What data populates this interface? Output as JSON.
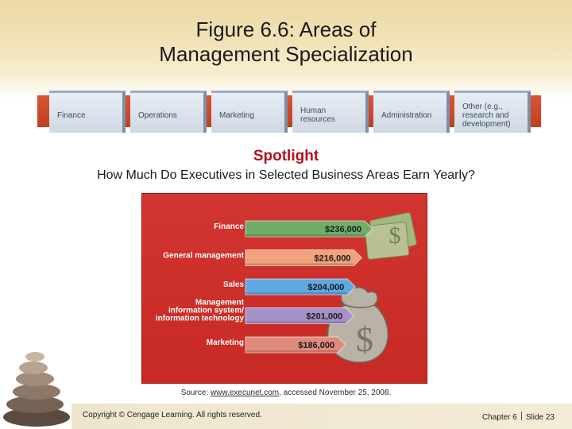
{
  "slide": {
    "title_line1": "Figure 6.6: Areas of",
    "title_line2": "Management Specialization"
  },
  "specializations": [
    "Finance",
    "Operations",
    "Marketing",
    "Human resources",
    "Administration",
    "Other (e.g., research and development)"
  ],
  "spotlight": {
    "heading": "Spotlight",
    "subtitle": "How Much Do Executives in Selected Business Areas Earn Yearly?"
  },
  "chart_data": {
    "type": "bar",
    "orientation": "horizontal",
    "categories": [
      "Finance",
      "General management",
      "Sales",
      "Management information system/ information technology",
      "Marketing"
    ],
    "values": [
      236000,
      216000,
      204000,
      201000,
      186000
    ],
    "value_labels": [
      "$236,000",
      "$216,000",
      "$204,000",
      "$201,000",
      "$186,000"
    ],
    "bar_colors": [
      "#6fae6a",
      "#f0a27c",
      "#5fa9e2",
      "#a592c8",
      "#e08a7e"
    ],
    "xlim": [
      0,
      236000
    ],
    "grid": false
  },
  "source": {
    "prefix": "Source: ",
    "link": "www.execunet.com",
    "suffix": ", accessed November 25, 2008."
  },
  "footer": {
    "copyright": "Copyright © Cengage Learning. All rights reserved.",
    "chapter": "Chapter 6",
    "slide": "Slide 23"
  },
  "colors": {
    "spotlight": "#b3121c",
    "chart_background": "#c72a24"
  }
}
